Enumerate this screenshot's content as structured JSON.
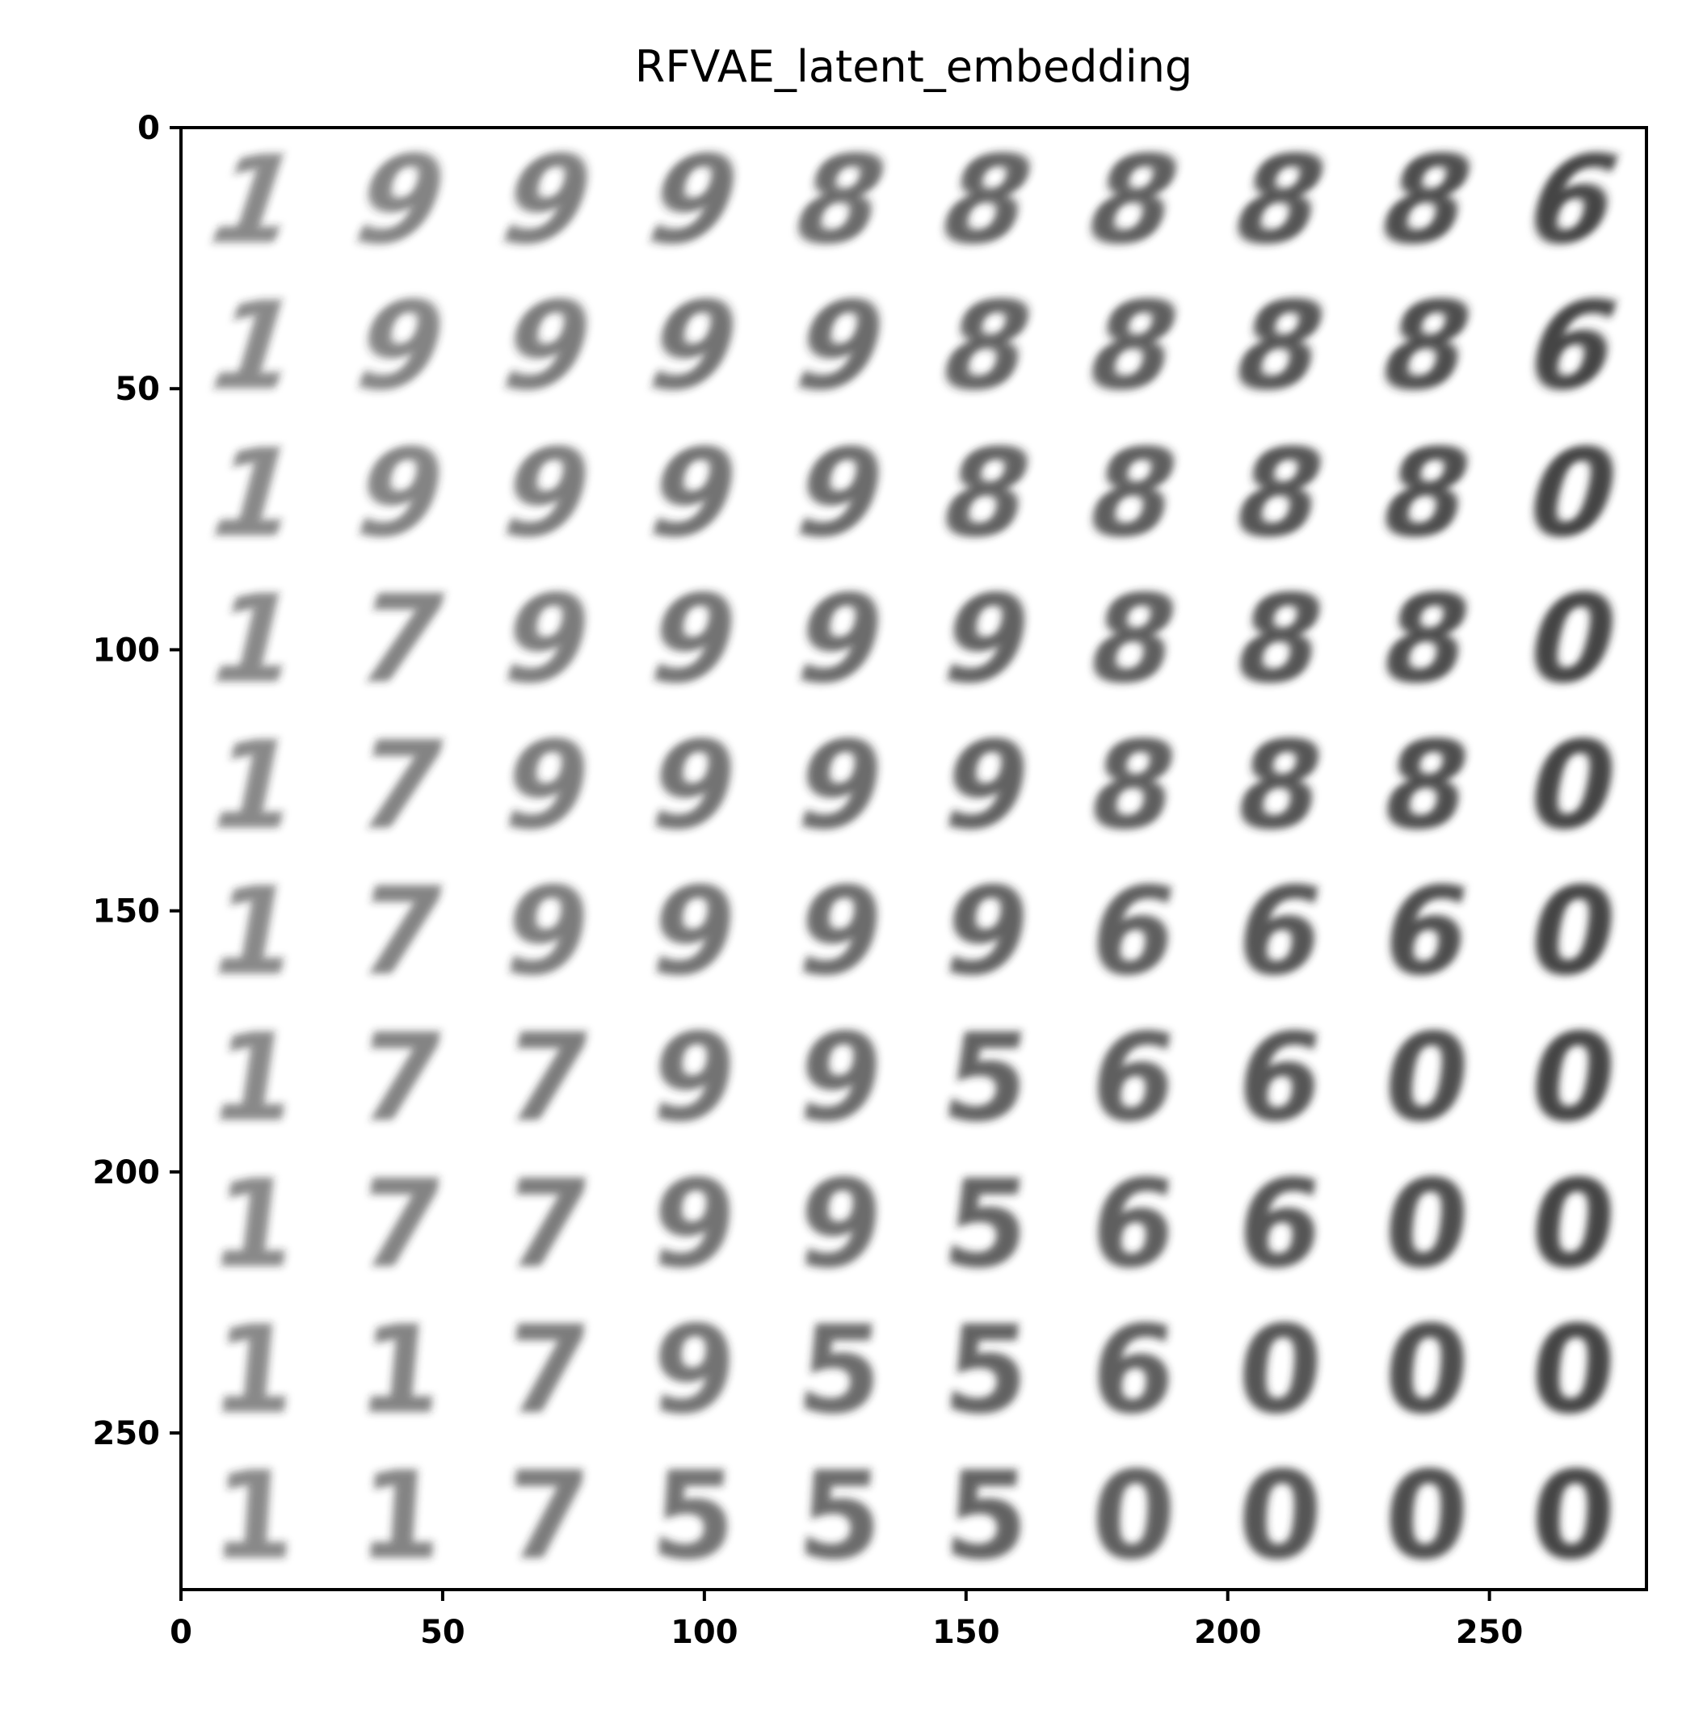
{
  "chart_data": {
    "type": "image",
    "title": "RFVAE_latent_embedding",
    "xlabel": "",
    "ylabel": "",
    "xlim": [
      0,
      280
    ],
    "ylim": [
      280,
      0
    ],
    "x_ticks": [
      0,
      50,
      100,
      150,
      200,
      250
    ],
    "y_ticks": [
      0,
      50,
      100,
      150,
      200,
      250
    ],
    "x_tick_labels": [
      "0",
      "50",
      "100",
      "150",
      "200",
      "250"
    ],
    "y_tick_labels": [
      "0",
      "50",
      "100",
      "150",
      "200",
      "250"
    ],
    "grid": false,
    "colormap": "gray_r",
    "grid_rows": 10,
    "grid_cols": 10,
    "cell_size": 28,
    "digit_grid": [
      [
        "1",
        "9",
        "9",
        "9",
        "8",
        "8",
        "8",
        "8",
        "8",
        "6"
      ],
      [
        "1",
        "9",
        "9",
        "9",
        "9",
        "8",
        "8",
        "8",
        "8",
        "6"
      ],
      [
        "1",
        "9",
        "9",
        "9",
        "9",
        "8",
        "8",
        "8",
        "8",
        "0"
      ],
      [
        "1",
        "7",
        "9",
        "9",
        "9",
        "9",
        "8",
        "8",
        "8",
        "0"
      ],
      [
        "1",
        "7",
        "9",
        "9",
        "9",
        "9",
        "8",
        "8",
        "8",
        "0"
      ],
      [
        "1",
        "7",
        "9",
        "9",
        "9",
        "9",
        "6",
        "6",
        "6",
        "0"
      ],
      [
        "1",
        "7",
        "7",
        "9",
        "9",
        "5",
        "6",
        "6",
        "0",
        "0"
      ],
      [
        "1",
        "7",
        "7",
        "9",
        "9",
        "5",
        "6",
        "6",
        "0",
        "0"
      ],
      [
        "1",
        "1",
        "7",
        "9",
        "5",
        "5",
        "6",
        "0",
        "0",
        "0"
      ],
      [
        "1",
        "1",
        "7",
        "5",
        "5",
        "5",
        "0",
        "0",
        "0",
        "0"
      ]
    ]
  },
  "colors": {
    "ink": "#2b2b2b",
    "background": "#ffffff",
    "frame": "#000000"
  }
}
